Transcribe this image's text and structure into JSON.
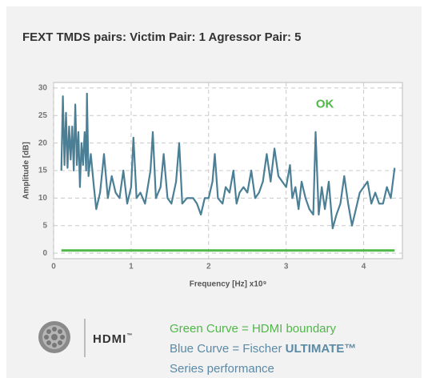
{
  "chart_data": {
    "type": "line",
    "title": "FEXT TMDS pairs: Victim Pair: 1 Agressor Pair: 5",
    "xlabel": "Frequency [Hz] x10⁹",
    "ylabel": "Amplitude [dB]",
    "xlim": [
      0,
      4.5
    ],
    "ylim": [
      -1,
      31
    ],
    "xticks": [
      0,
      1,
      2,
      3,
      4
    ],
    "yticks": [
      0,
      5,
      10,
      15,
      20,
      25,
      30
    ],
    "grid": true,
    "annotation": {
      "text": "OK",
      "x": 3.5,
      "y": 27,
      "color": "#4fb848"
    },
    "series": [
      {
        "color": "#4fb848",
        "x": [
          0.1,
          4.4
        ],
        "values": [
          0.5,
          0.5
        ]
      },
      {
        "color": "#4a7f96",
        "x": [
          0.1,
          0.12,
          0.14,
          0.16,
          0.18,
          0.2,
          0.22,
          0.24,
          0.26,
          0.28,
          0.3,
          0.32,
          0.34,
          0.36,
          0.38,
          0.4,
          0.42,
          0.43,
          0.45,
          0.48,
          0.52,
          0.55,
          0.6,
          0.65,
          0.7,
          0.75,
          0.8,
          0.85,
          0.9,
          0.95,
          1.0,
          1.03,
          1.07,
          1.12,
          1.18,
          1.25,
          1.28,
          1.32,
          1.38,
          1.42,
          1.47,
          1.52,
          1.58,
          1.62,
          1.66,
          1.72,
          1.8,
          1.85,
          1.9,
          1.95,
          2.0,
          2.05,
          2.08,
          2.12,
          2.18,
          2.22,
          2.27,
          2.32,
          2.36,
          2.4,
          2.45,
          2.5,
          2.55,
          2.6,
          2.65,
          2.7,
          2.75,
          2.8,
          2.85,
          2.9,
          2.95,
          3.0,
          3.05,
          3.08,
          3.12,
          3.16,
          3.2,
          3.25,
          3.3,
          3.35,
          3.38,
          3.42,
          3.46,
          3.5,
          3.55,
          3.6,
          3.65,
          3.7,
          3.75,
          3.8,
          3.85,
          3.9,
          3.95,
          4.0,
          4.05,
          4.1,
          4.15,
          4.2,
          4.25,
          4.3,
          4.35,
          4.4
        ],
        "values": [
          15,
          28.5,
          16,
          25.5,
          15.5,
          23,
          17,
          23,
          15,
          27,
          16,
          22,
          12,
          20,
          16,
          22,
          15,
          29,
          14,
          18,
          12,
          8,
          11,
          18,
          10,
          14,
          11,
          10,
          15,
          9,
          12,
          21,
          10,
          11,
          9,
          15,
          22,
          10,
          12,
          18,
          10,
          9,
          13,
          20,
          9,
          10,
          10,
          9,
          7,
          10,
          10,
          13,
          18,
          10,
          9,
          12,
          11,
          15,
          9,
          11,
          12,
          11,
          15,
          10,
          11,
          13,
          18,
          13,
          19,
          14,
          13,
          12,
          16,
          10,
          12,
          8,
          13,
          10,
          8,
          7,
          22,
          7,
          12,
          8,
          13,
          4.5,
          7,
          9,
          14,
          9,
          5,
          8,
          11,
          12,
          13,
          9,
          11,
          9,
          9,
          12,
          10,
          15.5
        ]
      }
    ]
  },
  "footer": {
    "logo_text": "HDMI",
    "logo_mark": "™",
    "legend_green": "Green Curve = HDMI boundary",
    "legend_blue": "Blue Curve = Fischer",
    "legend_blue_brand": "ULTIMATE™",
    "legend_blue_tail": "Series performance"
  }
}
